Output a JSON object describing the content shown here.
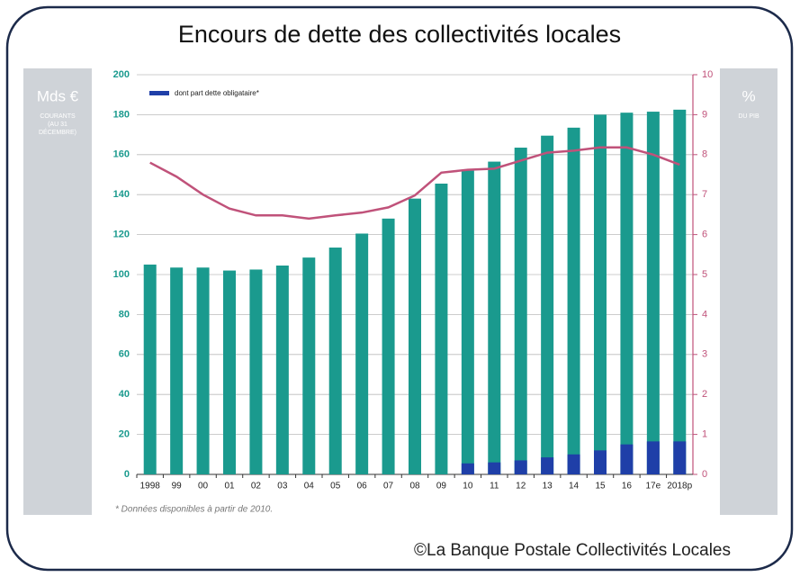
{
  "chart_data": {
    "type": "bar",
    "title": "Encours de dette des collectivités locales",
    "left_panel": {
      "unit": "Mds €",
      "lines": [
        "COURANTS",
        "(AU 31",
        "DÉCEMBRE)"
      ]
    },
    "right_panel": {
      "unit": "%",
      "lines": [
        "DU PIB"
      ]
    },
    "categories": [
      "1998",
      "99",
      "00",
      "01",
      "02",
      "03",
      "04",
      "05",
      "06",
      "07",
      "08",
      "09",
      "10",
      "11",
      "12",
      "13",
      "14",
      "15",
      "16",
      "17e",
      "2018p"
    ],
    "series": [
      {
        "color": "#1a9a8e",
        "values": [
          105,
          103.5,
          103.5,
          102,
          102.5,
          104.5,
          108.5,
          113.5,
          120.5,
          128,
          138,
          145.5,
          152,
          156.5,
          163.5,
          169.5,
          173.5,
          180,
          181,
          181.5,
          182.5
        ]
      },
      {
        "name": "dont part dette obligataire*",
        "color": "#1f3fa8",
        "values": [
          null,
          null,
          null,
          null,
          null,
          null,
          null,
          null,
          null,
          null,
          null,
          null,
          5.5,
          6,
          7,
          8.5,
          10,
          12,
          15,
          16.5,
          16.5
        ]
      },
      {
        "color": "#c0527a",
        "axis": "y2",
        "values": [
          7.8,
          7.45,
          7.0,
          6.65,
          6.48,
          6.48,
          6.4,
          6.48,
          6.55,
          6.68,
          6.98,
          7.55,
          7.62,
          7.65,
          7.85,
          8.05,
          8.1,
          8.18,
          8.18,
          8.0,
          7.75
        ]
      }
    ],
    "ylim": [
      0,
      200
    ],
    "yticks": [
      0,
      20,
      40,
      60,
      80,
      100,
      120,
      140,
      160,
      180,
      200
    ],
    "y2lim": [
      0,
      10
    ],
    "y2ticks": [
      0,
      1,
      2,
      3,
      4,
      5,
      6,
      7,
      8,
      9,
      10
    ],
    "grid": true,
    "legend": "top-left",
    "footnote": "* Données disponibles à partir de 2010.",
    "source": "©La Banque Postale Collectivités Locales"
  }
}
